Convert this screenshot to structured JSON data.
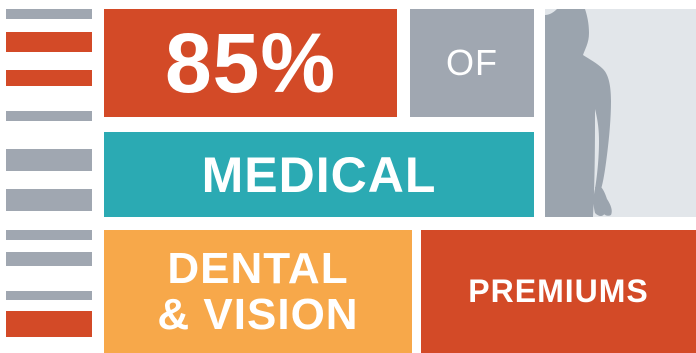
{
  "colors": {
    "orange_red": "#d34a27",
    "slate_gray": "#a0a7b1",
    "teal": "#2baab3",
    "light_orange": "#f7a84a",
    "figure_bg": "#e2e6ea",
    "figure_silhouette": "#9ba4ae",
    "text": "#ffffff"
  },
  "icons": {
    "figure": "person-silhouette-icon"
  },
  "stat": {
    "percent": "85%",
    "of": "OF",
    "medical": "MEDICAL",
    "dental_line1": "DENTAL",
    "dental_line2": "& VISION",
    "premiums": "PREMIUMS"
  }
}
